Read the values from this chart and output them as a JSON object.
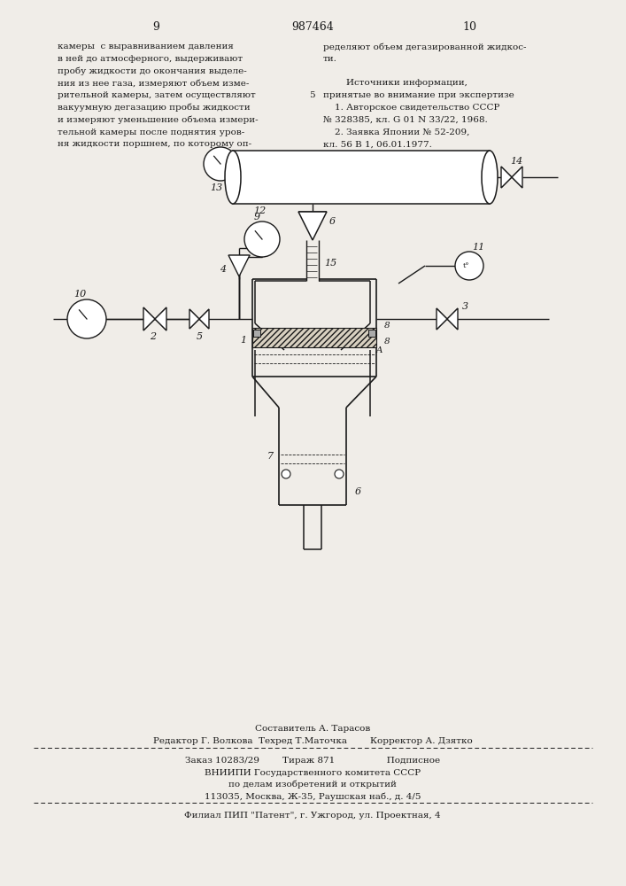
{
  "page_numbers": [
    "9",
    "987464",
    "10"
  ],
  "left_text": [
    "камеры  с выравниванием давления",
    "в ней до атмосферного, выдерживают",
    "пробу жидкости до окончания выделе-",
    "ния из нее газа, измеряют объем изме-",
    "рительной камеры, затем осуществляют",
    "вакуумную дегазацию пробы жидкости",
    "и измеряют уменьшение объема измери-",
    "тельной камеры после поднятия уров-",
    "ня жидкости поршнем, по которому оп-"
  ],
  "right_text_col1": "5",
  "right_text": [
    "ределяют объем дегазированной жидкос-",
    "ти.",
    "",
    "        Источники информации,",
    "принятые во внимание при экспертизе",
    "    1. Авторское свидетельство СССР",
    "№ 328385, кл. G 01 N 33/22, 1968.",
    "    2. Заявка Японии № 52-209,",
    "кл. 56 В 1, 06.01.1977."
  ],
  "footer_line1": "Составитель А. Тарасов",
  "footer_line2": "Редактор Г. Волкова  Техред Т.Маточка        Корректор А. Дзятко",
  "footer_line3": "Заказ 10283/29        Тираж 871                  Подписное",
  "footer_line4": "ВНИИПИ Государственного комитета СССР",
  "footer_line5": "по делам изобретений и открытий",
  "footer_line6": "113035, Москва, Ж-35, Раушская наб., д. 4/5",
  "footer_line7": "Филиал ПИП \"Патент\", г. Ужгород, ул. Проектная, 4",
  "bg_color": "#f0ede8",
  "text_color": "#1a1a1a"
}
